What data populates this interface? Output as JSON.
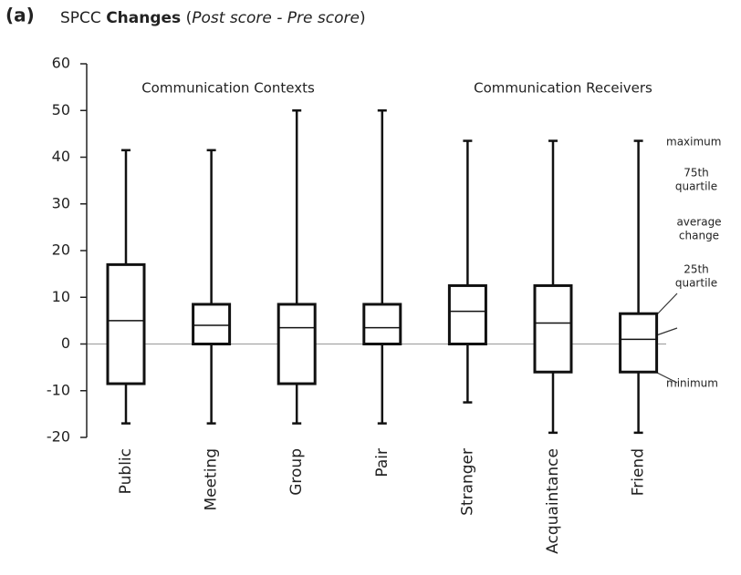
{
  "chart_data": {
    "type": "box",
    "panel_label": "(a)",
    "title_parts": [
      {
        "text": "SPCC",
        "style": "normal"
      },
      {
        "text": "Changes",
        "style": "bold"
      },
      {
        "text": "(",
        "style": "normal"
      },
      {
        "text": "Post score - Pre score",
        "style": "italic"
      },
      {
        "text": ")",
        "style": "normal"
      }
    ],
    "group_labels": [
      "Communication Contexts",
      "Communication Receivers"
    ],
    "annotations": {
      "maximum": "maximum",
      "q3": [
        "75th",
        "quartile"
      ],
      "median": [
        "average",
        "change"
      ],
      "q1": [
        "25th",
        "quartile"
      ],
      "minimum": "minimum"
    },
    "categories": [
      "Public",
      "Meeting",
      "Group",
      "Pair",
      "Stranger",
      "Acquaintance",
      "Friend"
    ],
    "boxes": [
      {
        "min": -17,
        "q1": -8.5,
        "median": 5,
        "q3": 17,
        "max": 41.5
      },
      {
        "min": -17,
        "q1": 0,
        "median": 4,
        "q3": 8.5,
        "max": 41.5
      },
      {
        "min": -17,
        "q1": -8.5,
        "median": 3.5,
        "q3": 8.5,
        "max": 50
      },
      {
        "min": -17,
        "q1": 0,
        "median": 3.5,
        "q3": 8.5,
        "max": 50
      },
      {
        "min": -12.5,
        "q1": 0,
        "median": 7,
        "q3": 12.5,
        "max": 43.5
      },
      {
        "min": -19,
        "q1": -6,
        "median": 4.5,
        "q3": 12.5,
        "max": 43.5
      },
      {
        "min": -19,
        "q1": -6,
        "median": 1,
        "q3": 6.5,
        "max": 43.5
      }
    ],
    "color": "#111111",
    "ylim": [
      -20,
      60
    ],
    "yticks": [
      -20,
      -10,
      0,
      10,
      20,
      30,
      40,
      50,
      60
    ]
  }
}
